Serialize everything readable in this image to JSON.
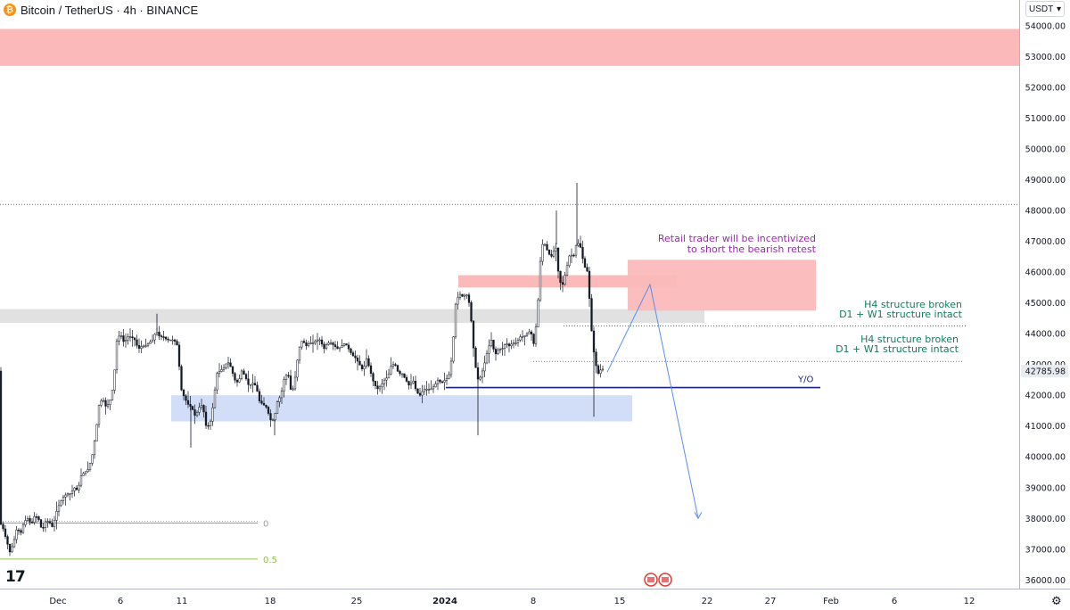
{
  "header": {
    "symbol": "Bitcoin / TetherUS · 4h · BINANCE",
    "coin_icon": "bitcoin-icon",
    "coin_glyph": "₿"
  },
  "currency_select": {
    "label": "USDT",
    "icon": "chevron-down-icon"
  },
  "tv_logo": "17",
  "settings_icon": "gear-icon",
  "chart_data": {
    "type": "candlestick",
    "title": "Bitcoin / TetherUS · 4h · BINANCE",
    "price_axis": {
      "ticks": [
        "54000.00",
        "53000.00",
        "52000.00",
        "51000.00",
        "50000.00",
        "49000.00",
        "48000.00",
        "47000.00",
        "46000.00",
        "45000.00",
        "44000.00",
        "43000.00",
        "42000.00",
        "41000.00",
        "40000.00",
        "39000.00",
        "38000.00",
        "37000.00",
        "36000.00"
      ],
      "ylim": [
        35800,
        54700
      ]
    },
    "time_axis": {
      "labels": [
        "Dec",
        "6",
        "11",
        "18",
        "25",
        "2024",
        "8",
        "15",
        "22",
        "27",
        "Feb",
        "6",
        "12"
      ]
    },
    "last_price": {
      "label": "42785.98",
      "value": 42785.98
    },
    "price_path": [
      [
        0,
        37900
      ],
      [
        4,
        37700
      ],
      [
        8,
        37300
      ],
      [
        12,
        36900
      ],
      [
        16,
        37200
      ],
      [
        20,
        37700
      ],
      [
        24,
        37500
      ],
      [
        28,
        37900
      ],
      [
        32,
        38000
      ],
      [
        36,
        37800
      ],
      [
        40,
        38100
      ],
      [
        44,
        38000
      ],
      [
        48,
        37600
      ],
      [
        52,
        37900
      ],
      [
        56,
        37900
      ],
      [
        60,
        37700
      ],
      [
        64,
        38200
      ],
      [
        68,
        38500
      ],
      [
        72,
        38700
      ],
      [
        76,
        38800
      ],
      [
        80,
        38800
      ],
      [
        84,
        39000
      ],
      [
        88,
        38900
      ],
      [
        92,
        39400
      ],
      [
        96,
        39500
      ],
      [
        100,
        39600
      ],
      [
        104,
        40000
      ],
      [
        108,
        40700
      ],
      [
        112,
        41700
      ],
      [
        116,
        41900
      ],
      [
        120,
        41600
      ],
      [
        124,
        41800
      ],
      [
        128,
        42300
      ],
      [
        132,
        43800
      ],
      [
        136,
        44000
      ],
      [
        140,
        43700
      ],
      [
        144,
        43900
      ],
      [
        148,
        43900
      ],
      [
        152,
        43800
      ],
      [
        156,
        43500
      ],
      [
        160,
        43600
      ],
      [
        164,
        43600
      ],
      [
        168,
        43700
      ],
      [
        172,
        43800
      ],
      [
        176,
        44100
      ],
      [
        180,
        43900
      ],
      [
        184,
        43900
      ],
      [
        188,
        43800
      ],
      [
        192,
        43800
      ],
      [
        196,
        43800
      ],
      [
        200,
        43600
      ],
      [
        204,
        42200
      ],
      [
        208,
        41900
      ],
      [
        212,
        41700
      ],
      [
        216,
        41600
      ],
      [
        220,
        41300
      ],
      [
        224,
        41600
      ],
      [
        228,
        41700
      ],
      [
        232,
        41000
      ],
      [
        236,
        41000
      ],
      [
        240,
        41700
      ],
      [
        244,
        42700
      ],
      [
        248,
        42800
      ],
      [
        252,
        42900
      ],
      [
        256,
        43100
      ],
      [
        260,
        42900
      ],
      [
        264,
        42500
      ],
      [
        268,
        42400
      ],
      [
        272,
        42800
      ],
      [
        276,
        42600
      ],
      [
        280,
        42300
      ],
      [
        284,
        42400
      ],
      [
        288,
        42300
      ],
      [
        292,
        41800
      ],
      [
        296,
        41700
      ],
      [
        300,
        41600
      ],
      [
        304,
        41200
      ],
      [
        308,
        41200
      ],
      [
        312,
        41800
      ],
      [
        316,
        42000
      ],
      [
        320,
        42600
      ],
      [
        324,
        42700
      ],
      [
        328,
        42000
      ],
      [
        332,
        42600
      ],
      [
        336,
        43500
      ],
      [
        340,
        43800
      ],
      [
        344,
        43600
      ],
      [
        348,
        43700
      ],
      [
        352,
        43700
      ],
      [
        356,
        43800
      ],
      [
        360,
        43800
      ],
      [
        364,
        43500
      ],
      [
        368,
        43700
      ],
      [
        372,
        43700
      ],
      [
        376,
        43600
      ],
      [
        380,
        43500
      ],
      [
        384,
        43600
      ],
      [
        388,
        43700
      ],
      [
        392,
        43500
      ],
      [
        396,
        43300
      ],
      [
        400,
        43200
      ],
      [
        404,
        43000
      ],
      [
        408,
        42800
      ],
      [
        412,
        43200
      ],
      [
        416,
        42800
      ],
      [
        420,
        42400
      ],
      [
        424,
        42200
      ],
      [
        428,
        42300
      ],
      [
        432,
        42500
      ],
      [
        436,
        42600
      ],
      [
        440,
        43000
      ],
      [
        444,
        43000
      ],
      [
        448,
        42700
      ],
      [
        452,
        42700
      ],
      [
        456,
        42500
      ],
      [
        460,
        42300
      ],
      [
        464,
        42500
      ],
      [
        468,
        42100
      ],
      [
        472,
        42000
      ],
      [
        476,
        42200
      ],
      [
        480,
        42200
      ],
      [
        484,
        42200
      ],
      [
        488,
        42300
      ],
      [
        492,
        42500
      ],
      [
        496,
        42400
      ],
      [
        500,
        42500
      ],
      [
        504,
        42600
      ],
      [
        508,
        43300
      ],
      [
        512,
        45000
      ],
      [
        516,
        45300
      ],
      [
        520,
        45200
      ],
      [
        524,
        45300
      ],
      [
        528,
        44900
      ],
      [
        532,
        43500
      ],
      [
        536,
        42500
      ],
      [
        540,
        42600
      ],
      [
        544,
        43000
      ],
      [
        548,
        43500
      ],
      [
        552,
        43800
      ],
      [
        556,
        43300
      ],
      [
        560,
        43500
      ],
      [
        564,
        43500
      ],
      [
        568,
        43700
      ],
      [
        572,
        43600
      ],
      [
        576,
        43700
      ],
      [
        580,
        43700
      ],
      [
        584,
        43900
      ],
      [
        588,
        43900
      ],
      [
        592,
        44000
      ],
      [
        596,
        44100
      ],
      [
        600,
        43600
      ],
      [
        604,
        44900
      ],
      [
        608,
        46900
      ],
      [
        612,
        46900
      ],
      [
        616,
        46600
      ],
      [
        620,
        46500
      ],
      [
        624,
        46900
      ],
      [
        628,
        45700
      ],
      [
        632,
        45600
      ],
      [
        636,
        46100
      ],
      [
        640,
        46600
      ],
      [
        644,
        46500
      ],
      [
        648,
        47000
      ],
      [
        652,
        46800
      ],
      [
        656,
        46200
      ],
      [
        660,
        46000
      ],
      [
        664,
        44200
      ],
      [
        668,
        43100
      ],
      [
        672,
        42700
      ],
      [
        676,
        42900
      ],
      [
        678,
        42786
      ]
    ],
    "zones": [
      {
        "name": "supply-zone-top",
        "low": 52700,
        "high": 53900,
        "color": "#fbb9b9"
      },
      {
        "name": "resistance-zone-grey",
        "low": 44350,
        "high": 44800,
        "color": "#e1e1e1"
      },
      {
        "name": "demand-zone-blue",
        "low": 41150,
        "high": 42000,
        "color": "#d2def8"
      },
      {
        "name": "supply-zone-small",
        "low": 45500,
        "high": 45900,
        "color": "#fbb9b9"
      },
      {
        "name": "retest-zone",
        "low": 44750,
        "high": 46400,
        "color": "#fbb9b9"
      }
    ],
    "levels": [
      {
        "name": "horizontal-dotted-top",
        "price": 48200
      },
      {
        "name": "year-open-line",
        "price": 42250,
        "label": "Y/O"
      },
      {
        "name": "fib-level-0",
        "price": 37850,
        "label": "0"
      },
      {
        "name": "fib-level-0-5",
        "price": 36680,
        "label": "0.5"
      }
    ],
    "annotations": {
      "retail": [
        "Retail trader will be incentivized",
        "to short the bearish retest"
      ],
      "upper_note": [
        "H4 structure broken",
        "D1 + W1 structure intact"
      ],
      "lower_note": [
        "H4 structure broken",
        "D1 + W1 structure intact"
      ]
    },
    "projection": [
      {
        "x_offset": 0,
        "price": 42750
      },
      {
        "x_offset": 48,
        "price": 45600
      },
      {
        "x_offset": 102,
        "price": 38000
      }
    ],
    "colors": {
      "candle": "#131722",
      "purple_text": "#9c27b0",
      "green_text": "#137a5e",
      "yo_line": "#1a237e",
      "projection": "#5b8def",
      "fib0": "#9e9e9e",
      "fib05": "#8bc34a",
      "last_price_bg": "#e9ecef"
    },
    "legend": "none",
    "grid": false
  }
}
